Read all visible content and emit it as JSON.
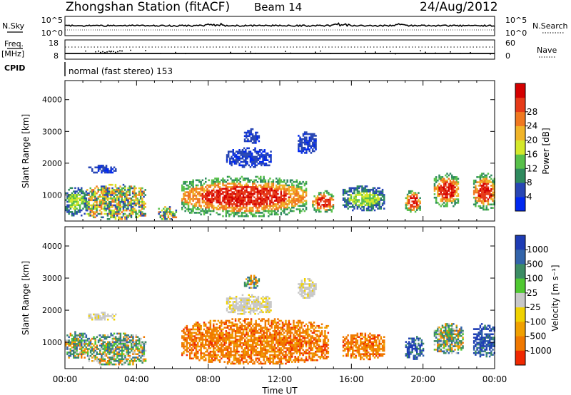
{
  "header": {
    "station": "Zhongshan Station (fitACF)",
    "beam": "Beam 14",
    "date": "24/Aug/2012"
  },
  "strip_panels": {
    "nsky": {
      "label": "N.Sky",
      "tick_top": "10^5",
      "tick_bottom": "10^0"
    },
    "nsearch": {
      "label": "N.Search",
      "tick_top": "10^5",
      "tick_bottom": "10^0"
    },
    "freq": {
      "label_top": "Freq.",
      "label_unit": "[MHz]",
      "tick_top": "18",
      "tick_bottom": "8"
    },
    "nave": {
      "label": "Nave",
      "tick_top": "60",
      "tick_bottom": "0"
    },
    "cpid": {
      "label": "CPID",
      "text": "normal (fast stereo) 153"
    }
  },
  "chart_data": [
    {
      "type": "heatmap",
      "name": "power",
      "ylabel": "Slant Range [km]",
      "ylim": [
        180,
        4600
      ],
      "yticks": [
        "1000",
        "2000",
        "3000",
        "4000"
      ],
      "colorbar": {
        "label": "Power [dB]",
        "ticks": [
          "4",
          "8",
          "12",
          "16",
          "20",
          "24",
          "28"
        ],
        "colors": [
          "#0028f0",
          "#2846b4",
          "#2e8a5e",
          "#58c04a",
          "#d4e82a",
          "#f0b428",
          "#f07820",
          "#e63a18",
          "#d40000"
        ]
      },
      "regions": [
        {
          "x": [
            0.0,
            1.2
          ],
          "y": [
            350,
            1300
          ],
          "level": "mid"
        },
        {
          "x": [
            1.2,
            4.5
          ],
          "y": [
            250,
            1350
          ],
          "level": "mixed"
        },
        {
          "x": [
            1.3,
            2.8
          ],
          "y": [
            1700,
            1950
          ],
          "level": "low"
        },
        {
          "x": [
            5.2,
            6.2
          ],
          "y": [
            250,
            650
          ],
          "level": "mixed"
        },
        {
          "x": [
            6.5,
            13.5
          ],
          "y": [
            350,
            1600
          ],
          "level": "high"
        },
        {
          "x": [
            13.8,
            15.0
          ],
          "y": [
            450,
            1150
          ],
          "level": "high"
        },
        {
          "x": [
            15.5,
            17.8
          ],
          "y": [
            500,
            1300
          ],
          "level": "mid"
        },
        {
          "x": [
            19.0,
            19.8
          ],
          "y": [
            450,
            1200
          ],
          "level": "high"
        },
        {
          "x": [
            20.6,
            22.0
          ],
          "y": [
            650,
            1700
          ],
          "level": "high"
        },
        {
          "x": [
            22.8,
            24.0
          ],
          "y": [
            550,
            1700
          ],
          "level": "high"
        },
        {
          "x": [
            10.0,
            10.8
          ],
          "y": [
            2650,
            3100
          ],
          "level": "low"
        },
        {
          "x": [
            13.0,
            14.0
          ],
          "y": [
            2300,
            3000
          ],
          "level": "low"
        },
        {
          "x": [
            9.0,
            11.5
          ],
          "y": [
            1900,
            2500
          ],
          "level": "low"
        }
      ]
    },
    {
      "type": "heatmap",
      "name": "velocity",
      "xlabel": "Time UT",
      "ylabel": "Slant Range [km]",
      "ylim": [
        180,
        4600
      ],
      "yticks": [
        "1000",
        "2000",
        "3000",
        "4000"
      ],
      "xticks": [
        "00:00",
        "04:00",
        "08:00",
        "12:00",
        "16:00",
        "20:00",
        "00:00"
      ],
      "colorbar": {
        "label": "Velocity [m s⁻¹]",
        "ticks": [
          "1000",
          "500",
          "100",
          "25",
          "-25",
          "-100",
          "-500",
          "-1000"
        ],
        "colors": [
          "#1e3cb4",
          "#3264aa",
          "#3c8c64",
          "#50c832",
          "#c8c8c8",
          "#f0d200",
          "#f0a000",
          "#f07800",
          "#f02800"
        ]
      },
      "regions": [
        {
          "x": [
            0.0,
            1.3
          ],
          "y": [
            500,
            1350
          ],
          "level": "mixed"
        },
        {
          "x": [
            1.3,
            4.5
          ],
          "y": [
            300,
            1300
          ],
          "level": "mixed"
        },
        {
          "x": [
            1.3,
            2.8
          ],
          "y": [
            1700,
            1950
          ],
          "level": "grey"
        },
        {
          "x": [
            6.5,
            14.7
          ],
          "y": [
            350,
            1750
          ],
          "level": "orange"
        },
        {
          "x": [
            15.5,
            17.8
          ],
          "y": [
            500,
            1300
          ],
          "level": "orange"
        },
        {
          "x": [
            19.0,
            20.0
          ],
          "y": [
            500,
            1200
          ],
          "level": "blue"
        },
        {
          "x": [
            20.6,
            22.2
          ],
          "y": [
            650,
            1600
          ],
          "level": "mixed"
        },
        {
          "x": [
            22.8,
            24.0
          ],
          "y": [
            550,
            1600
          ],
          "level": "blue"
        },
        {
          "x": [
            13.0,
            14.0
          ],
          "y": [
            2400,
            3000
          ],
          "level": "grey"
        },
        {
          "x": [
            9.0,
            11.5
          ],
          "y": [
            1900,
            2500
          ],
          "level": "grey"
        },
        {
          "x": [
            10.0,
            10.8
          ],
          "y": [
            2700,
            3100
          ],
          "level": "mixed"
        }
      ]
    }
  ]
}
